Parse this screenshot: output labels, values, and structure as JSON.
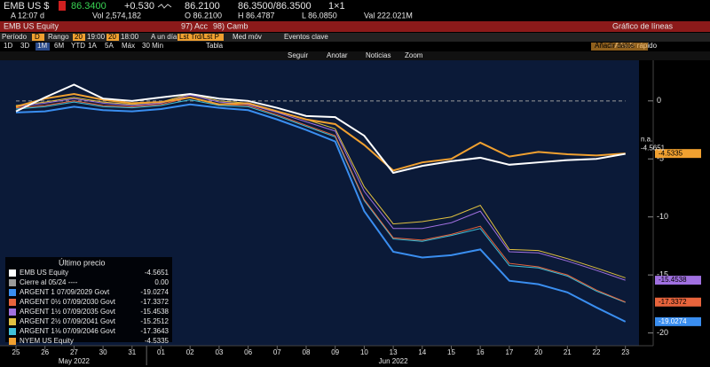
{
  "header": {
    "ticker": "EMB US $",
    "price": "86.3400",
    "change": "+0.530",
    "open_quote": "86.2100",
    "bid_ask": "86.3500/86.3500",
    "size": "1×1",
    "time": "A 12:07 d",
    "volume": "Vol 2,574,182",
    "open": "O 86.2100",
    "high": "H 86.4787",
    "low": "L 86.0850",
    "value": "Val 222.021M"
  },
  "toolbar": {
    "security": "EMB US Equity",
    "actions": [
      "97) Acc",
      "98) Camb"
    ],
    "chart_name": "Gráfico de líneas",
    "period_label": "Período",
    "period": "D",
    "range_label": "Rango",
    "range_from": "20",
    "range_from_time": "19:00",
    "range_to": "20",
    "range_to_time": "18:00",
    "day": "A un día",
    "price_type": "Lst Trd/Lst P",
    "moving_avg": "Med móv",
    "events": "Eventos clave",
    "zooms": [
      "1D",
      "3D",
      "1M",
      "6M",
      "YTD",
      "1A",
      "5A",
      "Máx",
      "30 Min"
    ],
    "table": "Tabla",
    "quick_add": "+ Añadir rápido",
    "add_data": "Añadir datos",
    "chart_tools": [
      "Seguir",
      "Anotar",
      "Noticias",
      "Zoom"
    ]
  },
  "chart_data": {
    "type": "line",
    "categories": [
      "25",
      "26",
      "27",
      "30",
      "31",
      "01",
      "02",
      "03",
      "06",
      "07",
      "08",
      "09",
      "10",
      "13",
      "14",
      "15",
      "16",
      "17",
      "20",
      "21",
      "22",
      "23"
    ],
    "month_labels": [
      "May 2022",
      "Jun 2022"
    ],
    "legend_title": "Último precio",
    "annotations": [
      "n.a."
    ],
    "ylim": [
      -21.1,
      3.5
    ],
    "yticks": [
      0,
      -5,
      -10,
      -15,
      -20
    ],
    "grid": false,
    "series": [
      {
        "name": "EMB US Equity",
        "color": "#ffffff",
        "legend_value": "-4.5651",
        "values": [
          -0.9,
          0.3,
          1.4,
          0.2,
          0.0,
          0.3,
          0.6,
          0.2,
          0.0,
          -0.6,
          -1.3,
          -1.4,
          -3.0,
          -6.2,
          -5.6,
          -5.2,
          -4.9,
          -5.5,
          -5.3,
          -5.1,
          -5.0,
          -4.5651
        ]
      },
      {
        "name": "Cierre al 05/24 ----",
        "color": "#9a9a9a",
        "style": "dashed",
        "legend_value": "0.00",
        "values": [
          0,
          0,
          0,
          0,
          0,
          0,
          0,
          0,
          0,
          0,
          0,
          0,
          0,
          0,
          0,
          0,
          0,
          0,
          0,
          0,
          0,
          0
        ]
      },
      {
        "name": "ARGENT 1 07/09/2029 Govt",
        "color": "#3a8ef0",
        "legend_value": "-19.0274",
        "values": [
          -1.0,
          -0.9,
          -0.5,
          -0.8,
          -0.9,
          -0.7,
          -0.3,
          -0.6,
          -0.8,
          -1.6,
          -2.5,
          -3.5,
          -9.5,
          -13.0,
          -13.5,
          -13.3,
          -12.8,
          -15.5,
          -15.8,
          -16.5,
          -17.8,
          -19.0274
        ]
      },
      {
        "name": "ARGENT 0½ 07/09/2030 Govt",
        "color": "#e8643c",
        "legend_value": "-17.3372",
        "values": [
          -0.6,
          -0.4,
          0.0,
          -0.4,
          -0.5,
          -0.3,
          0.3,
          -0.3,
          -0.4,
          -1.2,
          -2.1,
          -3.0,
          -8.5,
          -11.8,
          -12.0,
          -11.5,
          -10.8,
          -14.0,
          -14.3,
          -15.0,
          -16.3,
          -17.3372
        ]
      },
      {
        "name": "ARGENT 1½ 07/09/2035 Govt",
        "color": "#a070e0",
        "legend_value": "-15.4538",
        "values": [
          -0.5,
          -0.2,
          0.2,
          -0.2,
          -0.4,
          -0.2,
          0.5,
          -0.1,
          -0.3,
          -1.0,
          -1.8,
          -2.6,
          -7.8,
          -11.0,
          -11.0,
          -10.5,
          -9.5,
          -13.0,
          -13.1,
          -13.8,
          -14.6,
          -15.4538
        ]
      },
      {
        "name": "ARGENT 2½ 07/09/2041 Govt",
        "color": "#e0c040",
        "legend_value": "-15.2512",
        "values": [
          -0.4,
          -0.1,
          0.3,
          -0.1,
          -0.3,
          -0.1,
          0.6,
          0.0,
          -0.2,
          -0.9,
          -1.6,
          -2.4,
          -7.4,
          -10.6,
          -10.4,
          -10.0,
          -9.0,
          -12.8,
          -12.9,
          -13.6,
          -14.4,
          -15.2512
        ]
      },
      {
        "name": "ARGENT 1⅛ 07/09/2046 Govt",
        "color": "#40c0d8",
        "legend_value": "-17.3643",
        "values": [
          -0.7,
          -0.5,
          -0.1,
          -0.5,
          -0.6,
          -0.4,
          0.1,
          -0.4,
          -0.5,
          -1.3,
          -2.2,
          -3.1,
          -8.6,
          -11.9,
          -12.1,
          -11.6,
          -11.0,
          -14.2,
          -14.4,
          -15.1,
          -16.4,
          -17.3643
        ]
      },
      {
        "name": "NYEM US Equity",
        "color": "#f0a030",
        "legend_value": "-4.5335",
        "values": [
          -0.5,
          0.2,
          0.6,
          0.1,
          -0.2,
          -0.1,
          0.3,
          -0.3,
          -0.2,
          -0.9,
          -1.6,
          -2.0,
          -3.8,
          -6.0,
          -5.3,
          -5.0,
          -3.6,
          -4.8,
          -4.4,
          -4.6,
          -4.7,
          -4.5335
        ]
      }
    ]
  }
}
